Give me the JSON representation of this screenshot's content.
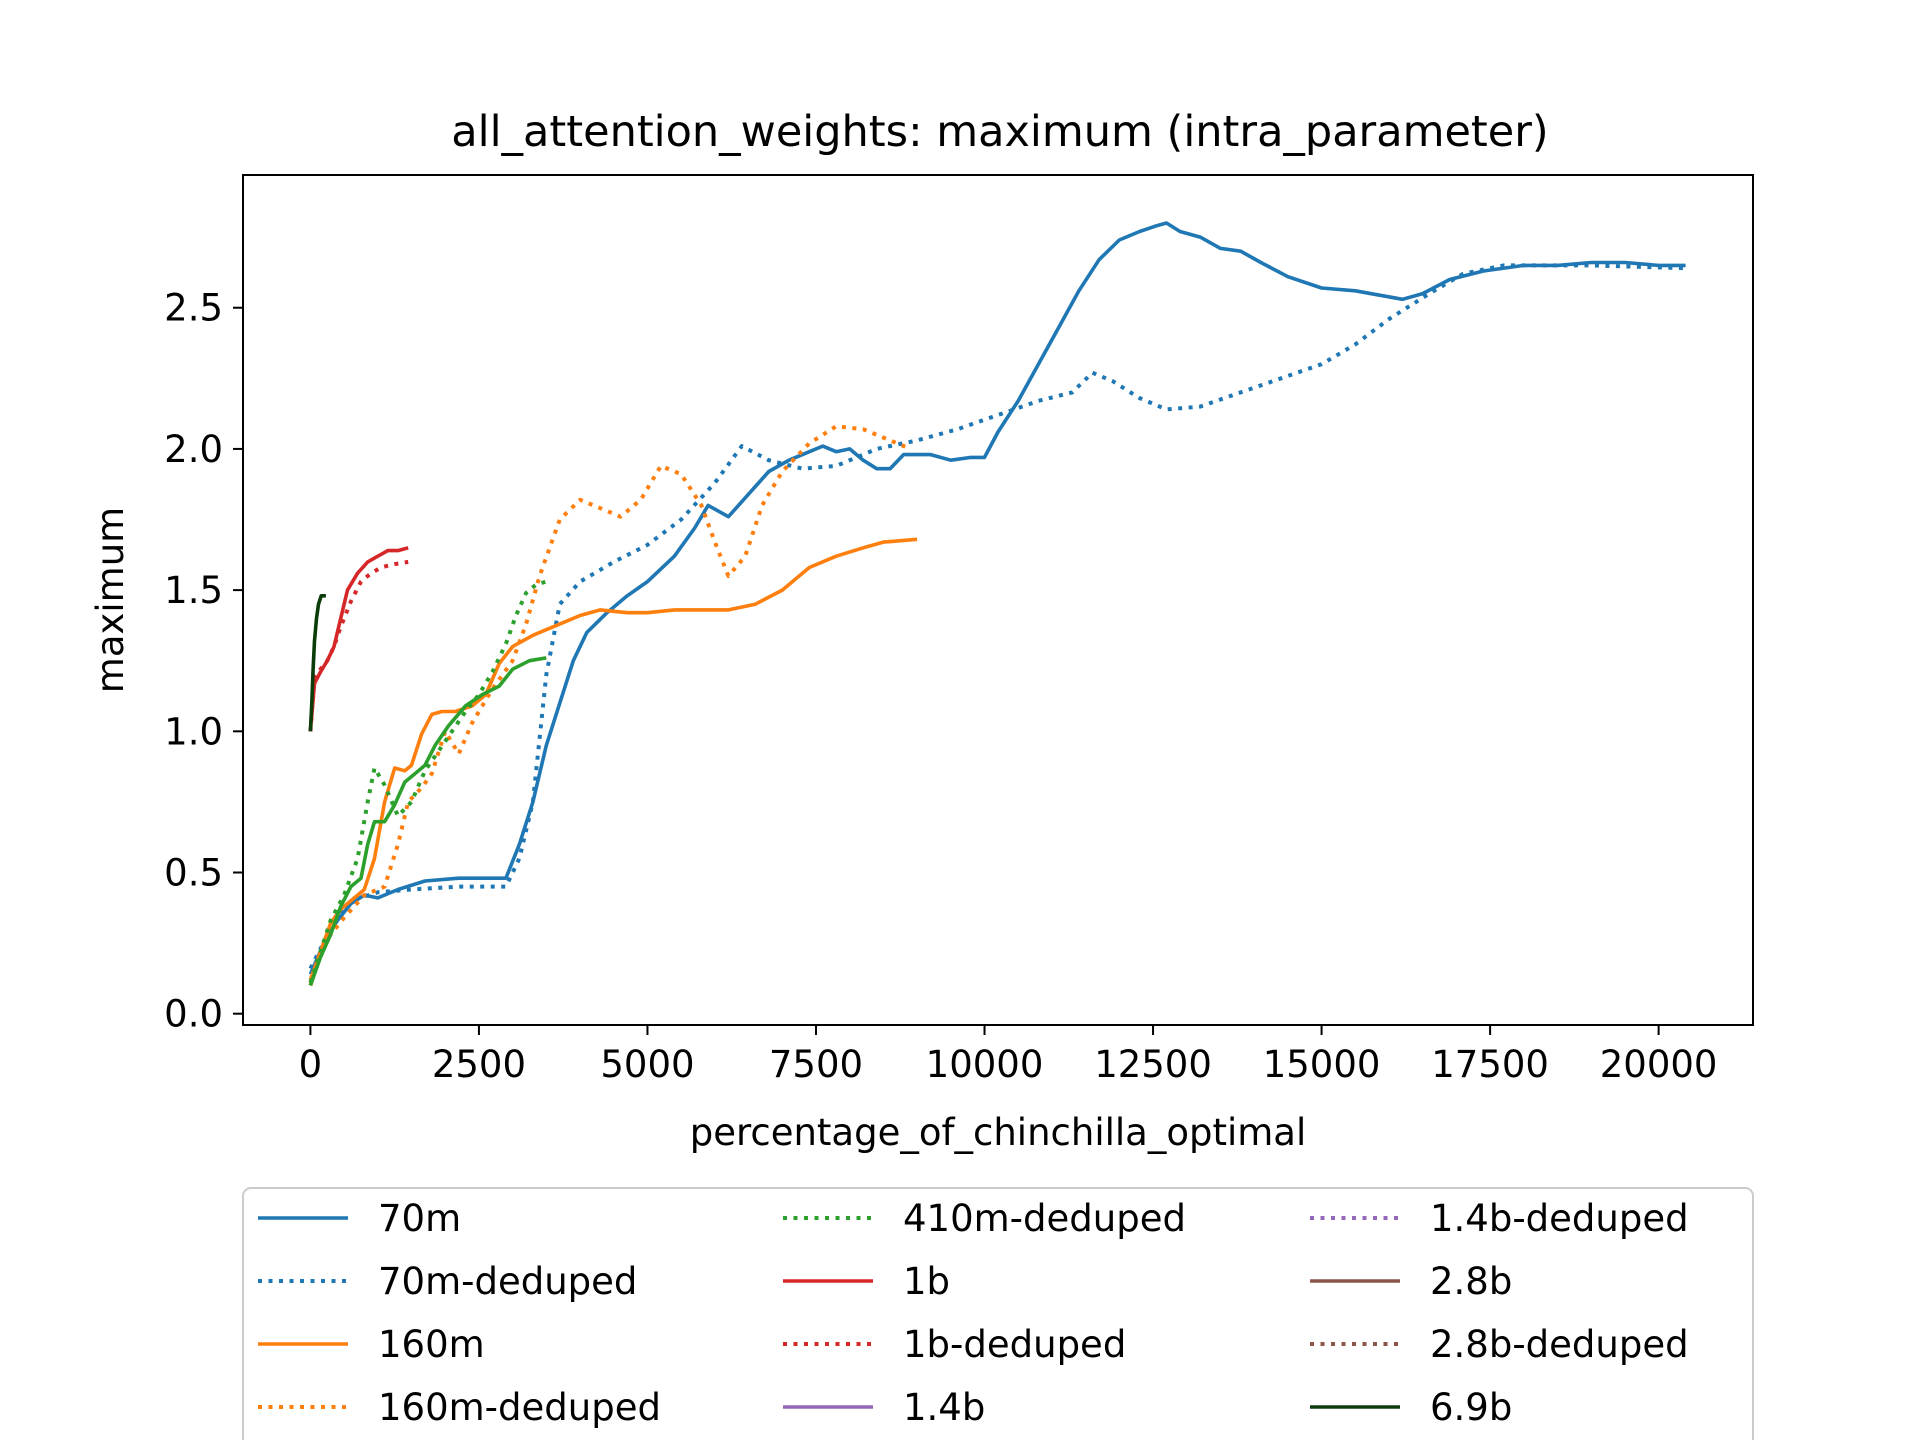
{
  "chart_data": {
    "type": "line",
    "title": "all_attention_weights: maximum (intra_parameter)",
    "xlabel": "percentage_of_chinchilla_optimal",
    "ylabel": "maximum",
    "xlim": [
      -1000,
      21400
    ],
    "ylim": [
      -0.04,
      2.97
    ],
    "xticks": [
      0,
      2500,
      5000,
      7500,
      10000,
      12500,
      15000,
      17500,
      20000
    ],
    "yticks": [
      0.0,
      0.5,
      1.0,
      1.5,
      2.0,
      2.5
    ],
    "grid": false,
    "legend_position": "below plot",
    "legend_columns": 3,
    "legend": [
      {
        "label": "70m",
        "color": "#1f77b4",
        "style": "solid"
      },
      {
        "label": "70m-deduped",
        "color": "#1f77b4",
        "style": "dotted"
      },
      {
        "label": "160m",
        "color": "#ff7f0e",
        "style": "solid"
      },
      {
        "label": "160m-deduped",
        "color": "#ff7f0e",
        "style": "dotted"
      },
      {
        "label": "410m-deduped",
        "color": "#2ca02c",
        "style": "dotted"
      },
      {
        "label": "1b",
        "color": "#d62728",
        "style": "solid"
      },
      {
        "label": "1b-deduped",
        "color": "#d62728",
        "style": "dotted"
      },
      {
        "label": "1.4b",
        "color": "#9467bd",
        "style": "solid"
      },
      {
        "label": "1.4b-deduped",
        "color": "#9467bd",
        "style": "dotted"
      },
      {
        "label": "2.8b",
        "color": "#8c564b",
        "style": "solid"
      },
      {
        "label": "2.8b-deduped",
        "color": "#8c564b",
        "style": "dotted"
      },
      {
        "label": "6.9b",
        "color": "#0b3d0b",
        "style": "solid"
      }
    ],
    "series": [
      {
        "name": "70m",
        "color": "#1f77b4",
        "style": "solid",
        "points": [
          [
            0,
            0.14
          ],
          [
            200,
            0.25
          ],
          [
            400,
            0.33
          ],
          [
            600,
            0.39
          ],
          [
            800,
            0.42
          ],
          [
            1000,
            0.41
          ],
          [
            1300,
            0.44
          ],
          [
            1700,
            0.47
          ],
          [
            2200,
            0.48
          ],
          [
            2900,
            0.48
          ],
          [
            3100,
            0.6
          ],
          [
            3300,
            0.75
          ],
          [
            3500,
            0.95
          ],
          [
            3700,
            1.1
          ],
          [
            3900,
            1.25
          ],
          [
            4100,
            1.35
          ],
          [
            4400,
            1.42
          ],
          [
            4700,
            1.48
          ],
          [
            5000,
            1.53
          ],
          [
            5400,
            1.62
          ],
          [
            5700,
            1.72
          ],
          [
            5900,
            1.8
          ],
          [
            6200,
            1.76
          ],
          [
            6500,
            1.84
          ],
          [
            6800,
            1.92
          ],
          [
            7100,
            1.96
          ],
          [
            7400,
            1.99
          ],
          [
            7600,
            2.01
          ],
          [
            7800,
            1.99
          ],
          [
            8000,
            2.0
          ],
          [
            8200,
            1.96
          ],
          [
            8400,
            1.93
          ],
          [
            8600,
            1.93
          ],
          [
            8800,
            1.98
          ],
          [
            9200,
            1.98
          ],
          [
            9500,
            1.96
          ],
          [
            9800,
            1.97
          ],
          [
            10000,
            1.97
          ],
          [
            10200,
            2.06
          ],
          [
            10500,
            2.17
          ],
          [
            10800,
            2.3
          ],
          [
            11100,
            2.43
          ],
          [
            11400,
            2.56
          ],
          [
            11700,
            2.67
          ],
          [
            12000,
            2.74
          ],
          [
            12300,
            2.77
          ],
          [
            12550,
            2.79
          ],
          [
            12700,
            2.8
          ],
          [
            12900,
            2.77
          ],
          [
            13200,
            2.75
          ],
          [
            13500,
            2.71
          ],
          [
            13800,
            2.7
          ],
          [
            14100,
            2.66
          ],
          [
            14500,
            2.61
          ],
          [
            15000,
            2.57
          ],
          [
            15500,
            2.56
          ],
          [
            16200,
            2.53
          ],
          [
            16500,
            2.55
          ],
          [
            16900,
            2.6
          ],
          [
            17400,
            2.63
          ],
          [
            18000,
            2.65
          ],
          [
            18500,
            2.65
          ],
          [
            19000,
            2.66
          ],
          [
            19500,
            2.66
          ],
          [
            20000,
            2.65
          ],
          [
            20400,
            2.65
          ]
        ]
      },
      {
        "name": "70m-deduped",
        "color": "#1f77b4",
        "style": "dotted",
        "points": [
          [
            0,
            0.16
          ],
          [
            300,
            0.3
          ],
          [
            600,
            0.4
          ],
          [
            1000,
            0.43
          ],
          [
            1500,
            0.44
          ],
          [
            2200,
            0.45
          ],
          [
            2900,
            0.45
          ],
          [
            3100,
            0.55
          ],
          [
            3300,
            0.75
          ],
          [
            3500,
            1.2
          ],
          [
            3700,
            1.45
          ],
          [
            4000,
            1.53
          ],
          [
            4500,
            1.6
          ],
          [
            5000,
            1.66
          ],
          [
            5500,
            1.75
          ],
          [
            6000,
            1.88
          ],
          [
            6400,
            2.01
          ],
          [
            6800,
            1.96
          ],
          [
            7300,
            1.93
          ],
          [
            7800,
            1.94
          ],
          [
            8400,
            2.0
          ],
          [
            9000,
            2.03
          ],
          [
            9600,
            2.07
          ],
          [
            10200,
            2.12
          ],
          [
            10800,
            2.17
          ],
          [
            11300,
            2.2
          ],
          [
            11600,
            2.27
          ],
          [
            11900,
            2.24
          ],
          [
            12300,
            2.18
          ],
          [
            12700,
            2.14
          ],
          [
            13200,
            2.15
          ],
          [
            13800,
            2.2
          ],
          [
            14400,
            2.25
          ],
          [
            15000,
            2.3
          ],
          [
            15500,
            2.37
          ],
          [
            16000,
            2.46
          ],
          [
            16600,
            2.55
          ],
          [
            17100,
            2.62
          ],
          [
            17700,
            2.65
          ],
          [
            18300,
            2.65
          ],
          [
            19000,
            2.65
          ],
          [
            20400,
            2.64
          ]
        ]
      },
      {
        "name": "160m",
        "color": "#ff7f0e",
        "style": "solid",
        "points": [
          [
            0,
            0.12
          ],
          [
            150,
            0.22
          ],
          [
            300,
            0.32
          ],
          [
            450,
            0.37
          ],
          [
            600,
            0.4
          ],
          [
            800,
            0.44
          ],
          [
            950,
            0.55
          ],
          [
            1100,
            0.75
          ],
          [
            1250,
            0.87
          ],
          [
            1400,
            0.86
          ],
          [
            1500,
            0.88
          ],
          [
            1650,
            0.99
          ],
          [
            1800,
            1.06
          ],
          [
            1950,
            1.07
          ],
          [
            2150,
            1.07
          ],
          [
            2400,
            1.09
          ],
          [
            2600,
            1.13
          ],
          [
            2800,
            1.24
          ],
          [
            3000,
            1.3
          ],
          [
            3300,
            1.34
          ],
          [
            3600,
            1.37
          ],
          [
            4000,
            1.41
          ],
          [
            4300,
            1.43
          ],
          [
            4700,
            1.42
          ],
          [
            5000,
            1.42
          ],
          [
            5400,
            1.43
          ],
          [
            5800,
            1.43
          ],
          [
            6200,
            1.43
          ],
          [
            6600,
            1.45
          ],
          [
            7000,
            1.5
          ],
          [
            7400,
            1.58
          ],
          [
            7800,
            1.62
          ],
          [
            8200,
            1.65
          ],
          [
            8500,
            1.67
          ],
          [
            9000,
            1.68
          ]
        ]
      },
      {
        "name": "160m-deduped",
        "color": "#ff7f0e",
        "style": "dotted",
        "points": [
          [
            0,
            0.1
          ],
          [
            200,
            0.25
          ],
          [
            500,
            0.34
          ],
          [
            800,
            0.42
          ],
          [
            1100,
            0.45
          ],
          [
            1300,
            0.6
          ],
          [
            1450,
            0.75
          ],
          [
            1650,
            0.8
          ],
          [
            1800,
            0.85
          ],
          [
            2000,
            1.0
          ],
          [
            2200,
            0.92
          ],
          [
            2400,
            1.03
          ],
          [
            2700,
            1.15
          ],
          [
            3000,
            1.25
          ],
          [
            3200,
            1.38
          ],
          [
            3400,
            1.55
          ],
          [
            3700,
            1.75
          ],
          [
            4000,
            1.82
          ],
          [
            4300,
            1.79
          ],
          [
            4600,
            1.76
          ],
          [
            4900,
            1.82
          ],
          [
            5200,
            1.94
          ],
          [
            5500,
            1.91
          ],
          [
            5800,
            1.8
          ],
          [
            6000,
            1.67
          ],
          [
            6200,
            1.55
          ],
          [
            6450,
            1.62
          ],
          [
            6700,
            1.8
          ],
          [
            7000,
            1.92
          ],
          [
            7400,
            2.02
          ],
          [
            7800,
            2.08
          ],
          [
            8200,
            2.07
          ],
          [
            8600,
            2.03
          ],
          [
            8900,
            2.0
          ]
        ]
      },
      {
        "name": "410m-deduped",
        "color": "#2ca02c",
        "style": "dotted",
        "points": [
          [
            0,
            0.11
          ],
          [
            150,
            0.22
          ],
          [
            300,
            0.33
          ],
          [
            500,
            0.42
          ],
          [
            700,
            0.55
          ],
          [
            850,
            0.75
          ],
          [
            950,
            0.87
          ],
          [
            1100,
            0.81
          ],
          [
            1300,
            0.7
          ],
          [
            1500,
            0.75
          ],
          [
            1700,
            0.86
          ],
          [
            1900,
            0.93
          ],
          [
            2100,
            1.0
          ],
          [
            2300,
            1.07
          ],
          [
            2500,
            1.13
          ],
          [
            2700,
            1.21
          ],
          [
            2900,
            1.31
          ],
          [
            3050,
            1.41
          ],
          [
            3200,
            1.49
          ],
          [
            3350,
            1.52
          ],
          [
            3500,
            1.53
          ]
        ]
      },
      {
        "name": "410m",
        "color": "#2ca02c",
        "style": "solid",
        "points": [
          [
            0,
            0.1
          ],
          [
            150,
            0.2
          ],
          [
            300,
            0.28
          ],
          [
            450,
            0.38
          ],
          [
            600,
            0.45
          ],
          [
            750,
            0.48
          ],
          [
            850,
            0.6
          ],
          [
            950,
            0.68
          ],
          [
            1100,
            0.68
          ],
          [
            1250,
            0.74
          ],
          [
            1400,
            0.82
          ],
          [
            1550,
            0.85
          ],
          [
            1700,
            0.88
          ],
          [
            1850,
            0.95
          ],
          [
            2050,
            1.02
          ],
          [
            2300,
            1.09
          ],
          [
            2550,
            1.13
          ],
          [
            2800,
            1.16
          ],
          [
            3000,
            1.22
          ],
          [
            3250,
            1.25
          ],
          [
            3500,
            1.26
          ]
        ]
      },
      {
        "name": "1b",
        "color": "#d62728",
        "style": "solid",
        "points": [
          [
            0,
            1.0
          ],
          [
            60,
            1.17
          ],
          [
            150,
            1.21
          ],
          [
            250,
            1.25
          ],
          [
            350,
            1.3
          ],
          [
            450,
            1.4
          ],
          [
            550,
            1.5
          ],
          [
            700,
            1.56
          ],
          [
            850,
            1.6
          ],
          [
            1000,
            1.62
          ],
          [
            1150,
            1.64
          ],
          [
            1300,
            1.64
          ],
          [
            1450,
            1.65
          ]
        ]
      },
      {
        "name": "1b-deduped",
        "color": "#d62728",
        "style": "dotted",
        "points": [
          [
            0,
            1.0
          ],
          [
            60,
            1.19
          ],
          [
            150,
            1.22
          ],
          [
            250,
            1.25
          ],
          [
            350,
            1.3
          ],
          [
            450,
            1.37
          ],
          [
            600,
            1.46
          ],
          [
            750,
            1.53
          ],
          [
            900,
            1.56
          ],
          [
            1050,
            1.58
          ],
          [
            1200,
            1.59
          ],
          [
            1450,
            1.6
          ]
        ]
      },
      {
        "name": "6.9b",
        "color": "#0b3d0b",
        "style": "solid",
        "points": [
          [
            0,
            1.0
          ],
          [
            20,
            1.1
          ],
          [
            40,
            1.22
          ],
          [
            60,
            1.32
          ],
          [
            90,
            1.4
          ],
          [
            120,
            1.45
          ],
          [
            160,
            1.48
          ],
          [
            230,
            1.48
          ]
        ]
      }
    ]
  }
}
